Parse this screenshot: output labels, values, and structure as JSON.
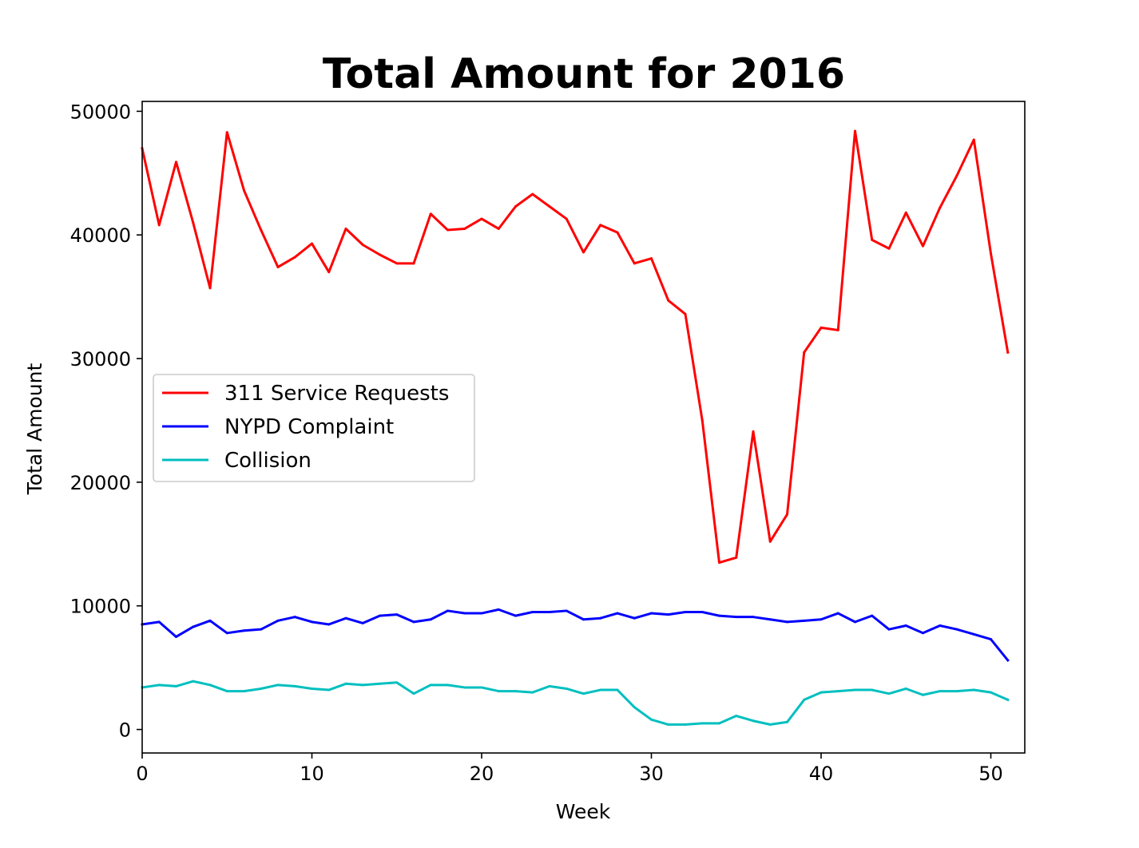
{
  "chart_data": {
    "type": "line",
    "title": "Total Amount for 2016",
    "xlabel": "Week",
    "ylabel": "Total Amount",
    "xlim": [
      0,
      52
    ],
    "ylim": [
      -1900,
      50800
    ],
    "x_ticks": [
      0,
      10,
      20,
      30,
      40,
      50
    ],
    "y_ticks": [
      0,
      10000,
      20000,
      30000,
      40000,
      50000
    ],
    "grid": false,
    "legend_position": "center-left",
    "x": [
      0,
      1,
      2,
      3,
      4,
      5,
      6,
      7,
      8,
      9,
      10,
      11,
      12,
      13,
      14,
      15,
      16,
      17,
      18,
      19,
      20,
      21,
      22,
      23,
      24,
      25,
      26,
      27,
      28,
      29,
      30,
      31,
      32,
      33,
      34,
      35,
      36,
      37,
      38,
      39,
      40,
      41,
      42,
      43,
      44,
      45,
      46,
      47,
      48,
      49,
      50,
      51
    ],
    "series": [
      {
        "name": "311 Service Requests",
        "color": "#ff0000",
        "values": [
          47000,
          40800,
          45900,
          41000,
          35700,
          48300,
          43600,
          40400,
          37400,
          38200,
          39300,
          37000,
          40500,
          39200,
          38400,
          37700,
          37700,
          41700,
          40400,
          40500,
          41300,
          40500,
          42300,
          43300,
          42300,
          41300,
          38600,
          40800,
          40200,
          37700,
          38100,
          34700,
          33600,
          25000,
          13500,
          13900,
          24100,
          15200,
          17400,
          30500,
          32500,
          32300,
          48400,
          39600,
          38900,
          41800,
          39100,
          42200,
          44800,
          47700,
          38500,
          30500
        ]
      },
      {
        "name": "NYPD Complaint",
        "color": "#0000ff",
        "values": [
          8500,
          8700,
          7500,
          8300,
          8800,
          7800,
          8000,
          8100,
          8800,
          9100,
          8700,
          8500,
          9000,
          8600,
          9200,
          9300,
          8700,
          8900,
          9600,
          9400,
          9400,
          9700,
          9200,
          9500,
          9500,
          9600,
          8900,
          9000,
          9400,
          9000,
          9400,
          9300,
          9500,
          9500,
          9200,
          9100,
          9100,
          8900,
          8700,
          8800,
          8900,
          9400,
          8700,
          9200,
          8100,
          8400,
          7800,
          8400,
          8100,
          7700,
          7300,
          5600
        ]
      },
      {
        "name": "Collision",
        "color": "#00bfbf",
        "values": [
          3400,
          3600,
          3500,
          3900,
          3600,
          3100,
          3100,
          3300,
          3600,
          3500,
          3300,
          3200,
          3700,
          3600,
          3700,
          3800,
          2900,
          3600,
          3600,
          3400,
          3400,
          3100,
          3100,
          3000,
          3500,
          3300,
          2900,
          3200,
          3200,
          1800,
          800,
          400,
          400,
          500,
          500,
          1100,
          700,
          400,
          600,
          2400,
          3000,
          3100,
          3200,
          3200,
          2900,
          3300,
          2800,
          3100,
          3100,
          3200,
          3000,
          2400
        ]
      }
    ]
  }
}
